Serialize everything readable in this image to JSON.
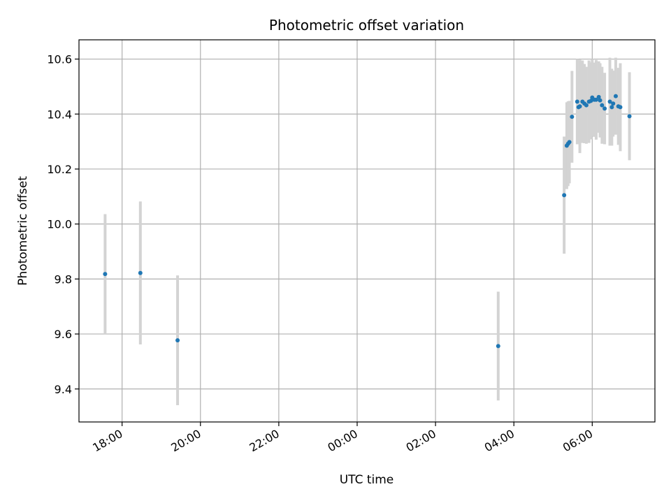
{
  "chart_data": {
    "type": "scatter",
    "title": "Photometric offset variation",
    "xlabel": "UTC time",
    "ylabel": "Photometric offset",
    "x_unit": "UTC time of day (spans midnight)",
    "xlim": [
      "16:54",
      "07:36"
    ],
    "ylim": [
      9.28,
      10.67
    ],
    "x_ticks": [
      "18:00",
      "20:00",
      "22:00",
      "00:00",
      "02:00",
      "04:00",
      "06:00"
    ],
    "y_ticks": [
      "9.4",
      "9.6",
      "9.8",
      "10.0",
      "10.2",
      "10.4",
      "10.6"
    ],
    "grid": true,
    "colors": {
      "marker": "#1f77b4",
      "errorbar": "#d3d3d3",
      "grid": "#b0b0b0"
    },
    "points": [
      {
        "x": "17:34",
        "y": 9.818,
        "err": 0.218
      },
      {
        "x": "18:28",
        "y": 9.822,
        "err": 0.26
      },
      {
        "x": "19:25",
        "y": 9.577,
        "err": 0.236
      },
      {
        "x": "03:36",
        "y": 9.556,
        "err": 0.198
      },
      {
        "x": "05:17",
        "y": 10.105,
        "err": 0.213
      },
      {
        "x": "05:21",
        "y": 10.285,
        "err": 0.158
      },
      {
        "x": "05:23",
        "y": 10.292,
        "err": 0.154
      },
      {
        "x": "05:25",
        "y": 10.298,
        "err": 0.15
      },
      {
        "x": "05:29",
        "y": 10.39,
        "err": 0.167
      },
      {
        "x": "05:37",
        "y": 10.445,
        "err": 0.155
      },
      {
        "x": "05:39",
        "y": 10.425,
        "err": 0.13
      },
      {
        "x": "05:41",
        "y": 10.428,
        "err": 0.17
      },
      {
        "x": "05:45",
        "y": 10.445,
        "err": 0.15
      },
      {
        "x": "05:48",
        "y": 10.438,
        "err": 0.144
      },
      {
        "x": "05:51",
        "y": 10.432,
        "err": 0.14
      },
      {
        "x": "05:55",
        "y": 10.445,
        "err": 0.15
      },
      {
        "x": "05:58",
        "y": 10.448,
        "err": 0.14
      },
      {
        "x": "06:00",
        "y": 10.46,
        "err": 0.14
      },
      {
        "x": "06:03",
        "y": 10.452,
        "err": 0.135
      },
      {
        "x": "06:06",
        "y": 10.452,
        "err": 0.145
      },
      {
        "x": "06:10",
        "y": 10.462,
        "err": 0.13
      },
      {
        "x": "06:12",
        "y": 10.45,
        "err": 0.135
      },
      {
        "x": "06:15",
        "y": 10.432,
        "err": 0.14
      },
      {
        "x": "06:19",
        "y": 10.42,
        "err": 0.13
      },
      {
        "x": "06:27",
        "y": 10.445,
        "err": 0.16
      },
      {
        "x": "06:30",
        "y": 10.425,
        "err": 0.14
      },
      {
        "x": "06:32",
        "y": 10.438,
        "err": 0.12
      },
      {
        "x": "06:36",
        "y": 10.465,
        "err": 0.14
      },
      {
        "x": "06:40",
        "y": 10.428,
        "err": 0.14
      },
      {
        "x": "06:43",
        "y": 10.425,
        "err": 0.16
      },
      {
        "x": "06:57",
        "y": 10.392,
        "err": 0.16
      }
    ]
  }
}
